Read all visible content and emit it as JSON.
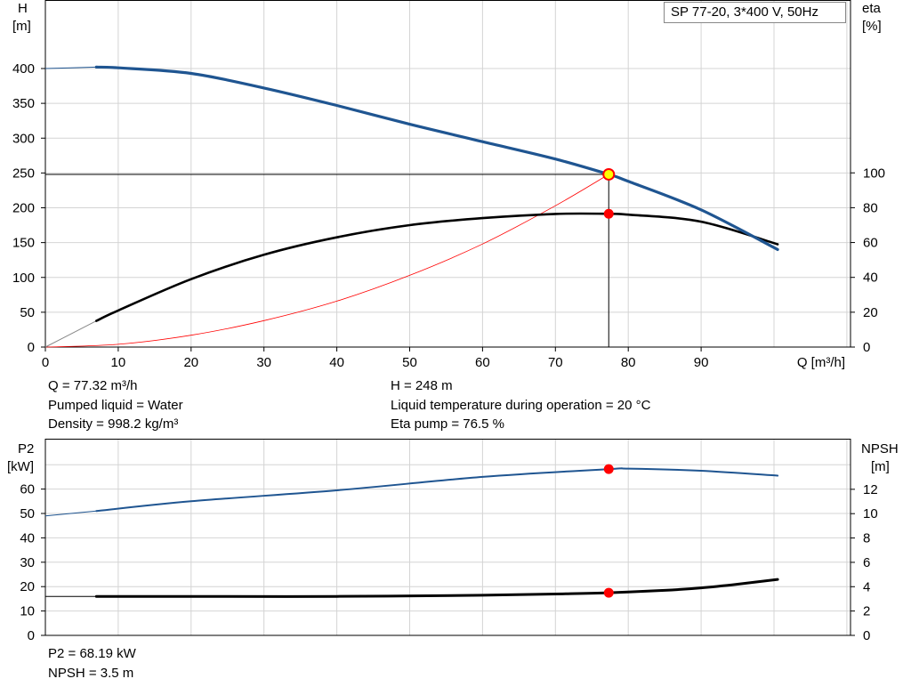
{
  "title_box": "SP 77-20, 3*400 V, 50Hz",
  "colors": {
    "head": "#1f5591",
    "eta": "#000000",
    "system": "#ff0000",
    "grid": "#d4d4d4",
    "marker": "#ff0000",
    "duty_fill": "#ffff00"
  },
  "info_top": {
    "q": "Q = 77.32 m³/h",
    "liquid": "Pumped liquid = Water",
    "density": "Density = 998.2 kg/m³",
    "h": "H = 248 m",
    "temp": "Liquid temperature during operation = 20 °C",
    "eta": "Eta pump = 76.5 %"
  },
  "info_bottom": {
    "p2": "P2 = 68.19 kW",
    "npsh": "NPSH = 3.5 m"
  },
  "chart_data": [
    {
      "type": "line",
      "name_top": "pump-curve",
      "xlabel": "Q [m³/h]",
      "ylabel_left": [
        "H",
        "[m]"
      ],
      "ylabel_right": [
        "eta",
        "[%]"
      ],
      "xlim": [
        0,
        110
      ],
      "ylim_left": [
        0,
        400
      ],
      "ylim_right": [
        0,
        100
      ],
      "x_ticks": [
        0,
        10,
        20,
        30,
        40,
        50,
        60,
        70,
        80,
        90
      ],
      "y_ticks_left": [
        0,
        50,
        100,
        150,
        200,
        250,
        300,
        350,
        400
      ],
      "y_ticks_right": [
        0,
        20,
        40,
        60,
        80,
        100
      ],
      "grid": true,
      "series": [
        {
          "key": "head",
          "axis": "left",
          "x": [
            0,
            7,
            10,
            20,
            30,
            40,
            50,
            60,
            70,
            77.32,
            80,
            90,
            100.5
          ],
          "y": [
            400,
            402,
            401,
            393,
            372,
            347,
            320,
            295,
            270,
            248,
            238,
            197,
            140
          ]
        },
        {
          "key": "eta",
          "axis": "right",
          "x": [
            0,
            7,
            10,
            20,
            30,
            40,
            50,
            60,
            70,
            77.32,
            80,
            90,
            100.5
          ],
          "y": [
            0,
            15,
            21,
            39,
            53,
            63,
            70,
            74,
            76.4,
            76.5,
            76,
            72,
            59
          ]
        },
        {
          "key": "system",
          "axis": "left",
          "x": [
            0,
            10,
            20,
            30,
            40,
            50,
            60,
            70,
            77.32
          ],
          "y": [
            0,
            4,
            17,
            38,
            66,
            103,
            148,
            203,
            248
          ]
        }
      ],
      "duty_point": {
        "x": 77.32,
        "head": 248,
        "eta": 76.5
      }
    },
    {
      "type": "line",
      "name_bottom": "power-npsh",
      "ylabel_left": [
        "P2",
        "[kW]"
      ],
      "ylabel_right": [
        "NPSH",
        "[m]"
      ],
      "xlim": [
        0,
        110
      ],
      "ylim_left": [
        0,
        70
      ],
      "ylim_right": [
        0,
        14
      ],
      "y_ticks_left": [
        0,
        10,
        20,
        30,
        40,
        50,
        60
      ],
      "y_ticks_right": [
        0,
        2,
        4,
        6,
        8,
        10,
        12
      ],
      "grid": true,
      "series": [
        {
          "key": "p2",
          "axis": "left",
          "x": [
            0,
            7,
            20,
            40,
            60,
            77.32,
            80,
            90,
            100.5
          ],
          "y": [
            49,
            51,
            55,
            59.5,
            65,
            68.19,
            68.4,
            67.5,
            65.5
          ]
        },
        {
          "key": "npsh",
          "axis": "right",
          "x": [
            0,
            7,
            20,
            40,
            60,
            70,
            77.32,
            85,
            90,
            95,
            100.5
          ],
          "y": [
            3.2,
            3.2,
            3.2,
            3.2,
            3.3,
            3.4,
            3.5,
            3.7,
            3.9,
            4.2,
            4.6
          ]
        }
      ],
      "duty_point": {
        "x": 77.32,
        "p2": 68.19,
        "npsh": 3.5
      }
    }
  ]
}
